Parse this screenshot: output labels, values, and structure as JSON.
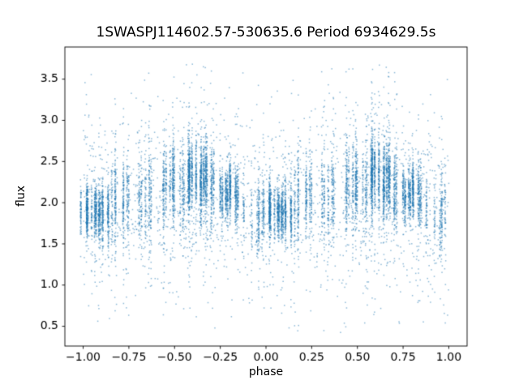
{
  "chart_data": {
    "type": "scatter",
    "title": "1SWASPJ114602.57-530635.6 Period 6934629.5s",
    "xlabel": "phase",
    "ylabel": "flux",
    "xlim": [
      -1.1,
      1.1
    ],
    "ylim": [
      0.26,
      3.89
    ],
    "clip_flux": [
      0.42,
      3.74
    ],
    "grid": false,
    "legend": false,
    "xticks": {
      "values": [
        -1.0,
        -0.75,
        -0.5,
        -0.25,
        0.0,
        0.25,
        0.5,
        0.75,
        1.0
      ],
      "labels": [
        "−1.00",
        "−0.75",
        "−0.50",
        "−0.25",
        "0.00",
        "0.25",
        "0.50",
        "0.75",
        "1.00"
      ]
    },
    "yticks": {
      "values": [
        0.5,
        1.0,
        1.5,
        2.0,
        2.5,
        3.0,
        3.5
      ],
      "labels": [
        "0.5",
        "1.0",
        "1.5",
        "2.0",
        "2.5",
        "3.0",
        "3.5"
      ]
    },
    "marker": {
      "color": "#1f77b4",
      "alpha": 0.5,
      "size": 1.5
    },
    "seed": 1337,
    "phase_fold_offset": -1,
    "point_groups": [
      {
        "center": 0.08,
        "width": 0.095,
        "cols": 16,
        "n": 1100,
        "mean": 1.9,
        "sd": 0.16,
        "tail_frac": 0.08
      },
      {
        "center": 0.175,
        "width": 0.02,
        "cols": 3,
        "n": 180,
        "mean": 2.0,
        "sd": 0.28,
        "tail_frac": 0.12
      },
      {
        "center": 0.24,
        "width": 0.025,
        "cols": 4,
        "n": 220,
        "mean": 2.05,
        "sd": 0.25,
        "tail_frac": 0.1
      },
      {
        "center": 0.34,
        "width": 0.035,
        "cols": 5,
        "n": 320,
        "mean": 2.1,
        "sd": 0.28,
        "tail_frac": 0.12
      },
      {
        "center": 0.46,
        "width": 0.045,
        "cols": 7,
        "n": 450,
        "mean": 2.2,
        "sd": 0.25,
        "tail_frac": 0.12
      },
      {
        "center": 0.54,
        "width": 0.015,
        "cols": 3,
        "n": 160,
        "mean": 2.1,
        "sd": 0.25,
        "tail_frac": 0.1
      },
      {
        "center": 0.63,
        "width": 0.055,
        "cols": 10,
        "n": 1200,
        "mean": 2.28,
        "sd": 0.22,
        "tail_frac": 0.12
      },
      {
        "center": 0.71,
        "width": 0.015,
        "cols": 3,
        "n": 200,
        "mean": 2.15,
        "sd": 0.25,
        "tail_frac": 0.1
      },
      {
        "center": 0.77,
        "width": 0.035,
        "cols": 6,
        "n": 550,
        "mean": 2.15,
        "sd": 0.16,
        "tail_frac": 0.08
      },
      {
        "center": 0.86,
        "width": 0.03,
        "cols": 5,
        "n": 260,
        "mean": 2.0,
        "sd": 0.2,
        "tail_frac": 0.1
      },
      {
        "center": 0.95,
        "width": 0.04,
        "cols": 6,
        "n": 220,
        "mean": 1.85,
        "sd": 0.22,
        "tail_frac": 0.12
      }
    ],
    "background": {
      "n": 1600,
      "mean": 2.0,
      "sd": 0.55,
      "wide_frac": 0.15
    }
  }
}
